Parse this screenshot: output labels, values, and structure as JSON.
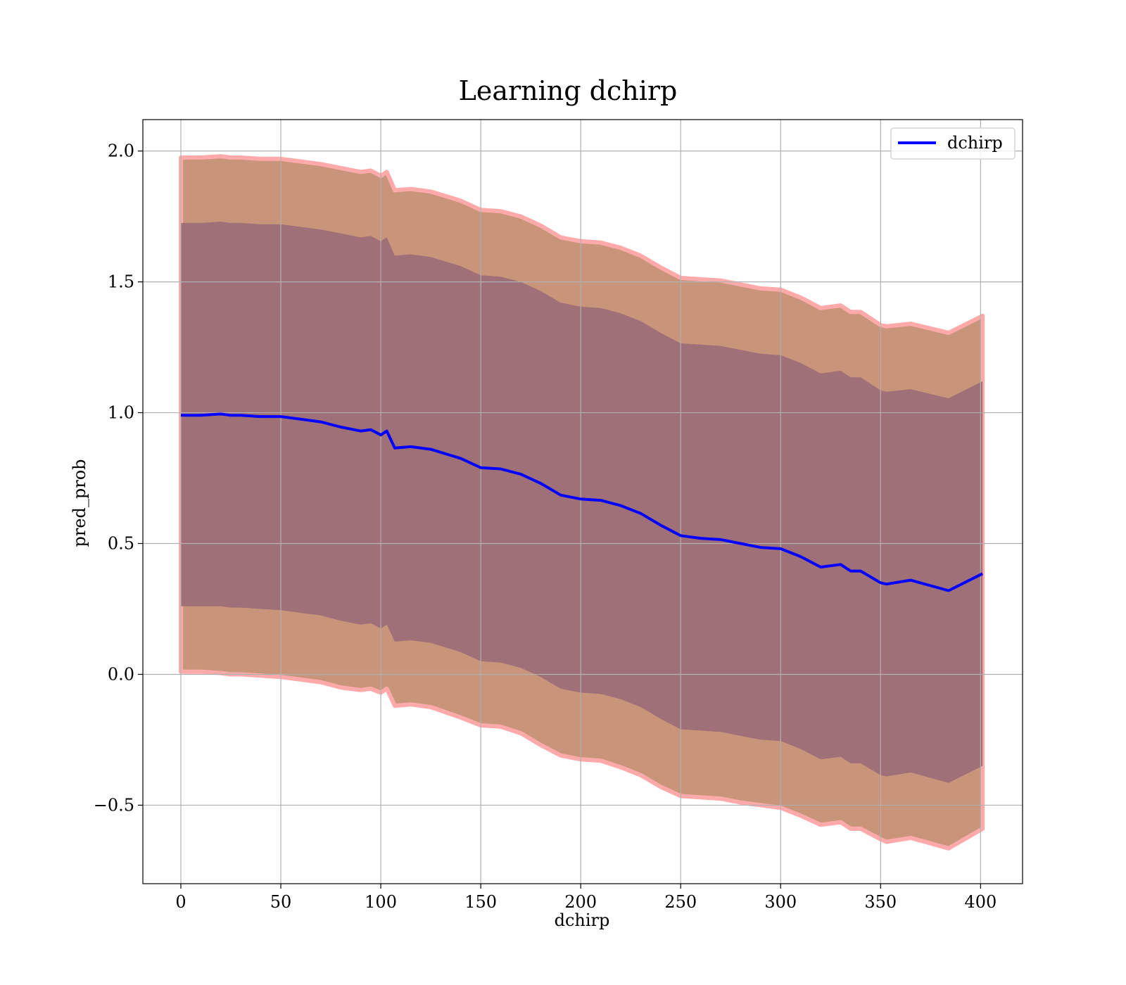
{
  "chart_data": {
    "type": "line",
    "title": "Learning dchirp",
    "xlabel": "dchirp",
    "ylabel": "pred_prob",
    "xlim": [
      -19,
      421
    ],
    "ylim": [
      -0.8,
      2.12
    ],
    "xticks": [
      0,
      50,
      100,
      150,
      200,
      250,
      300,
      350,
      400
    ],
    "xtick_labels": [
      "0",
      "50",
      "100",
      "150",
      "200",
      "250",
      "300",
      "350",
      "400"
    ],
    "yticks": [
      -0.5,
      0.0,
      0.5,
      1.0,
      1.5,
      2.0
    ],
    "ytick_labels": [
      "−0.5",
      "0.0",
      "0.5",
      "1.0",
      "1.5",
      "2.0"
    ],
    "grid": true,
    "legend": {
      "position": "top-right",
      "entries": [
        "dchirp"
      ]
    },
    "series": [
      {
        "name": "dchirp",
        "color": "#0000ff",
        "x": [
          0,
          10,
          20,
          25,
          30,
          40,
          50,
          60,
          70,
          80,
          90,
          95,
          100,
          103,
          107,
          115,
          125,
          140,
          150,
          160,
          170,
          180,
          190,
          200,
          210,
          220,
          230,
          240,
          250,
          260,
          270,
          280,
          290,
          300,
          310,
          320,
          330,
          335,
          340,
          350,
          353,
          365,
          384,
          401
        ],
        "y": [
          0.99,
          0.99,
          0.995,
          0.99,
          0.99,
          0.985,
          0.985,
          0.975,
          0.965,
          0.945,
          0.93,
          0.935,
          0.915,
          0.93,
          0.865,
          0.87,
          0.86,
          0.825,
          0.79,
          0.785,
          0.765,
          0.73,
          0.685,
          0.67,
          0.665,
          0.645,
          0.615,
          0.57,
          0.53,
          0.52,
          0.515,
          0.5,
          0.485,
          0.48,
          0.45,
          0.41,
          0.42,
          0.395,
          0.395,
          0.35,
          0.345,
          0.36,
          0.32,
          0.385
        ]
      }
    ],
    "bands": [
      {
        "label": "outer",
        "color": "#c8957a",
        "edge_color": "#ffaaaa",
        "lower": [
          0.01,
          0.01,
          0.005,
          0.0,
          0.0,
          -0.005,
          -0.01,
          -0.02,
          -0.03,
          -0.05,
          -0.06,
          -0.055,
          -0.07,
          -0.055,
          -0.12,
          -0.115,
          -0.125,
          -0.165,
          -0.195,
          -0.2,
          -0.225,
          -0.27,
          -0.31,
          -0.325,
          -0.33,
          -0.355,
          -0.385,
          -0.43,
          -0.465,
          -0.47,
          -0.475,
          -0.49,
          -0.5,
          -0.51,
          -0.54,
          -0.575,
          -0.565,
          -0.59,
          -0.59,
          -0.63,
          -0.64,
          -0.625,
          -0.665,
          -0.59
        ],
        "upper": [
          1.975,
          1.975,
          1.98,
          1.975,
          1.975,
          1.97,
          1.97,
          1.96,
          1.95,
          1.935,
          1.92,
          1.925,
          1.905,
          1.92,
          1.85,
          1.855,
          1.845,
          1.81,
          1.775,
          1.77,
          1.75,
          1.715,
          1.67,
          1.655,
          1.65,
          1.63,
          1.6,
          1.555,
          1.515,
          1.51,
          1.505,
          1.49,
          1.475,
          1.47,
          1.44,
          1.4,
          1.41,
          1.385,
          1.385,
          1.335,
          1.33,
          1.34,
          1.305,
          1.37
        ]
      },
      {
        "label": "inner",
        "color": "#a07078",
        "lower": [
          0.26,
          0.26,
          0.26,
          0.255,
          0.255,
          0.25,
          0.245,
          0.235,
          0.225,
          0.205,
          0.19,
          0.195,
          0.175,
          0.19,
          0.125,
          0.13,
          0.12,
          0.085,
          0.05,
          0.045,
          0.025,
          -0.01,
          -0.055,
          -0.07,
          -0.075,
          -0.095,
          -0.125,
          -0.17,
          -0.21,
          -0.215,
          -0.22,
          -0.235,
          -0.25,
          -0.255,
          -0.285,
          -0.325,
          -0.315,
          -0.34,
          -0.34,
          -0.385,
          -0.39,
          -0.375,
          -0.415,
          -0.35
        ],
        "upper": [
          1.725,
          1.725,
          1.73,
          1.725,
          1.725,
          1.72,
          1.72,
          1.71,
          1.7,
          1.685,
          1.67,
          1.675,
          1.655,
          1.67,
          1.6,
          1.605,
          1.595,
          1.56,
          1.525,
          1.52,
          1.5,
          1.465,
          1.42,
          1.405,
          1.4,
          1.38,
          1.35,
          1.305,
          1.265,
          1.26,
          1.255,
          1.24,
          1.225,
          1.22,
          1.19,
          1.15,
          1.16,
          1.135,
          1.135,
          1.085,
          1.08,
          1.09,
          1.055,
          1.12
        ]
      }
    ]
  }
}
